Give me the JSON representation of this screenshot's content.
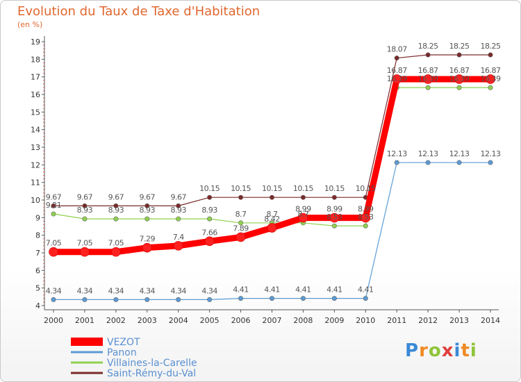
{
  "header": {
    "title": "Evolution du Taux de Taxe d'Habitation",
    "subtitle": "(en %)"
  },
  "branding": {
    "logo_text": "Proxiti"
  },
  "chart_data": {
    "type": "line",
    "title": "Evolution du Taux de Taxe d'Habitation",
    "subtitle": "(en %)",
    "xlabel": "",
    "ylabel": "(en %)",
    "ylim": [
      4,
      19
    ],
    "yticks": [
      4,
      5,
      6,
      7,
      8,
      9,
      10,
      11,
      12,
      13,
      14,
      15,
      16,
      17,
      18,
      19
    ],
    "grid": false,
    "legend_position": "bottom-left",
    "categories": [
      "2000",
      "2001",
      "2002",
      "2003",
      "2004",
      "2005",
      "2006",
      "2007",
      "2008",
      "2009",
      "2010",
      "2011",
      "2012",
      "2013",
      "2014"
    ],
    "series": [
      {
        "name": "VEZOT",
        "color": "#ff0000",
        "values": [
          7.05,
          7.05,
          7.05,
          7.29,
          7.4,
          7.66,
          7.89,
          8.42,
          8.99,
          8.99,
          8.99,
          16.87,
          16.87,
          16.87,
          16.87
        ],
        "labels": [
          "7.05",
          "7.05",
          "7.05",
          "7.29",
          "7.4",
          "7.66",
          "7.89",
          "8.42",
          "8.99",
          "8.99",
          "8.99",
          "16.87",
          "16.87",
          "16.87",
          "16.87"
        ]
      },
      {
        "name": "Panon",
        "color": "#5b9bd5",
        "values": [
          4.34,
          4.34,
          4.34,
          4.34,
          4.34,
          4.34,
          4.41,
          4.41,
          4.41,
          4.41,
          4.41,
          12.13,
          12.13,
          12.13,
          12.13
        ],
        "labels": [
          "4.34",
          "4.34",
          "4.34",
          "4.34",
          "4.34",
          "4.34",
          "4.41",
          "4.41",
          "4.41",
          "4.41",
          "4.41",
          "12.13",
          "12.13",
          "12.13",
          "12.13"
        ]
      },
      {
        "name": "Villaines-la-Carelle",
        "color": "#8fd14f",
        "values": [
          9.21,
          8.93,
          8.93,
          8.93,
          8.93,
          8.93,
          8.7,
          8.7,
          8.7,
          8.53,
          8.53,
          16.39,
          16.39,
          16.39,
          16.39
        ],
        "labels": [
          "9.21",
          "8.93",
          "8.93",
          "8.93",
          "8.93",
          "8.93",
          "8.7",
          "8.7",
          "8.7",
          "8.53",
          "8.53",
          "16.39",
          "16.39",
          "16.39",
          "16.39"
        ]
      },
      {
        "name": "Saint-Rémy-du-Val",
        "color": "#7b2a2a",
        "values": [
          9.67,
          9.67,
          9.67,
          9.67,
          9.67,
          10.15,
          10.15,
          10.15,
          10.15,
          10.15,
          10.15,
          18.07,
          18.25,
          18.25,
          18.25
        ],
        "labels": [
          "9.67",
          "9.67",
          "9.67",
          "9.67",
          "9.67",
          "10.15",
          "10.15",
          "10.15",
          "10.15",
          "10.15",
          "10.15",
          "18.07",
          "18.25",
          "18.25",
          "18.25"
        ]
      }
    ]
  }
}
